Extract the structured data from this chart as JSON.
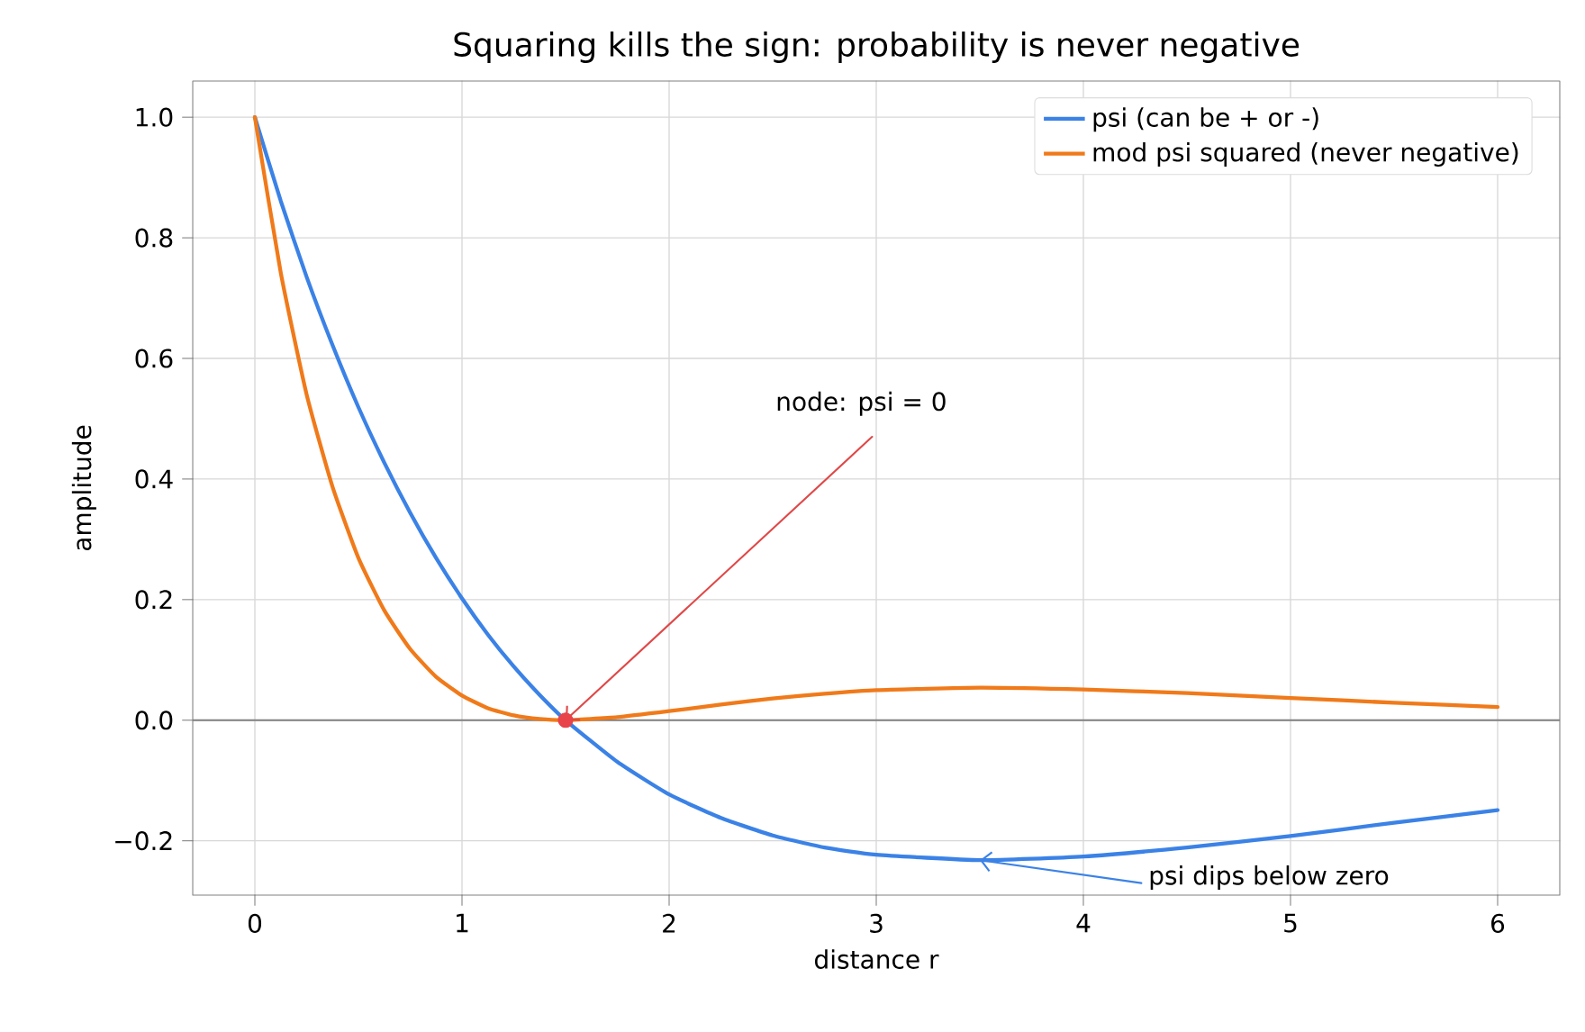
{
  "chart_data": {
    "type": "line",
    "title": "Squaring kills the sign: probability is never negative",
    "xlabel": "distance r",
    "ylabel": "amplitude",
    "x": [
      0,
      0.125,
      0.25,
      0.375,
      0.5,
      0.625,
      0.75,
      0.875,
      1,
      1.125,
      1.25,
      1.375,
      1.5,
      1.75,
      2,
      2.25,
      2.5,
      2.75,
      3,
      3.5,
      4,
      4.5,
      5,
      5.5,
      6
    ],
    "series": [
      {
        "name": "psi (can be + or -)",
        "color": "#3b82e6",
        "values": [
          1,
          0.861,
          0.735,
          0.622,
          0.519,
          0.427,
          0.344,
          0.269,
          0.202,
          0.142,
          0.089,
          0.042,
          0,
          -0.069,
          -0.123,
          -0.162,
          -0.191,
          -0.211,
          -0.223,
          -0.232,
          -0.226,
          -0.211,
          -0.192,
          -0.17,
          -0.149
        ]
      },
      {
        "name": "mod psi squared (never negative)",
        "color": "#f07a1a",
        "values": [
          1,
          0.742,
          0.54,
          0.387,
          0.269,
          0.182,
          0.118,
          0.072,
          0.041,
          0.02,
          0.008,
          0.002,
          0,
          0.005,
          0.015,
          0.026,
          0.036,
          0.044,
          0.05,
          0.054,
          0.051,
          0.045,
          0.037,
          0.029,
          0.022
        ]
      },
      {
        "type": "scatter",
        "color": "#e8424a",
        "x": [
          1.5
        ],
        "values": [
          0
        ],
        "marker": "circle"
      }
    ],
    "annotations": [
      {
        "text": "node: psi = 0",
        "x": 1.5,
        "y": 0
      },
      {
        "text": "psi dips below zero",
        "x": 3.5,
        "y": -0.232
      }
    ],
    "ref_lines": [
      {
        "axis": "y",
        "value": 0,
        "color": "#808080"
      }
    ],
    "xlim": [
      -0.3,
      6.3
    ],
    "ylim": [
      -0.29,
      1.06
    ],
    "xticks": [
      0,
      1,
      2,
      3,
      4,
      5,
      6
    ],
    "yticks": [
      {
        "value": -0.2,
        "label": "−0.2"
      },
      {
        "value": 0,
        "label": "0.0"
      },
      {
        "value": 0.2,
        "label": "0.2"
      },
      {
        "value": 0.4,
        "label": "0.4"
      },
      {
        "value": 0.6,
        "label": "0.6"
      },
      {
        "value": 0.8,
        "label": "0.8"
      },
      {
        "value": 1.0,
        "label": "1.0"
      }
    ],
    "grid": true,
    "legend": "top right",
    "marker": "none",
    "line_style": "solid"
  }
}
